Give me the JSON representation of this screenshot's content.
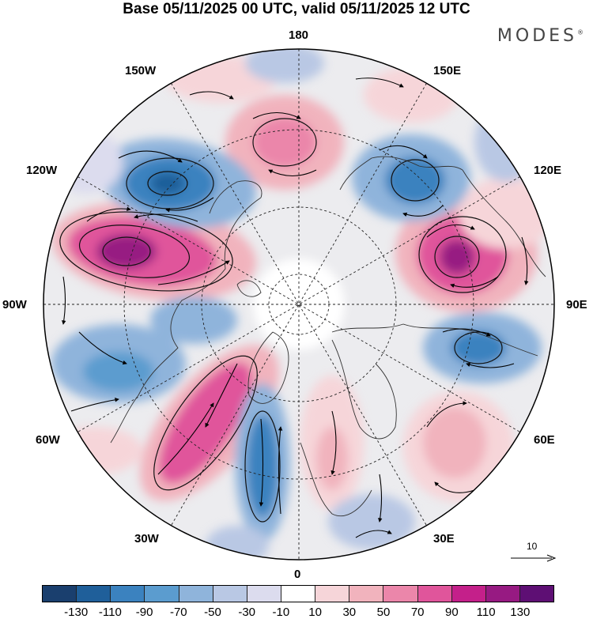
{
  "title": "Base 05/11/2025 00 UTC, valid 05/11/2025 12 UTC",
  "brand": {
    "name": "MODES",
    "mark": "®"
  },
  "longitude_labels": {
    "deg180": "180",
    "e150": "150E",
    "w150": "150W",
    "w120": "120W",
    "e120": "120E",
    "w90": "90W",
    "e90": "90E",
    "w60": "60W",
    "e60": "60E",
    "w30": "30W",
    "e30": "30E",
    "deg0": "0"
  },
  "wind_scale": {
    "label": "10"
  },
  "colorbar": {
    "colors": [
      "#1a3f6e",
      "#1f5f9a",
      "#3b82bf",
      "#5b9ccf",
      "#8fb4db",
      "#b9c8e4",
      "#dcdcee",
      "#ffffff",
      "#f6d5d9",
      "#f1b3bd",
      "#eb86aa",
      "#e0559b",
      "#c4208a",
      "#971a82",
      "#5e0f74"
    ],
    "ticks": [
      "-130",
      "-110",
      "-90",
      "-70",
      "-50",
      "-30",
      "-10",
      "10",
      "30",
      "50",
      "70",
      "90",
      "110",
      "130"
    ]
  },
  "anomalies": [
    {
      "name": "positive-west-pacific",
      "value": 110
    },
    {
      "name": "negative-gulf-alaska",
      "value": -110
    },
    {
      "name": "positive-bering",
      "value": 70
    },
    {
      "name": "negative-kamchatka",
      "value": -90
    },
    {
      "name": "positive-siberia",
      "value": 110
    },
    {
      "name": "negative-east-asia",
      "value": -90
    },
    {
      "name": "positive-north-atlantic",
      "value": 90
    },
    {
      "name": "negative-greenland-south",
      "value": -90
    },
    {
      "name": "negative-north-america-east",
      "value": -70
    },
    {
      "name": "positive-europe",
      "value": 50
    },
    {
      "name": "positive-central-asia",
      "value": 50
    },
    {
      "name": "negative-mediterranean",
      "value": -50
    }
  ]
}
